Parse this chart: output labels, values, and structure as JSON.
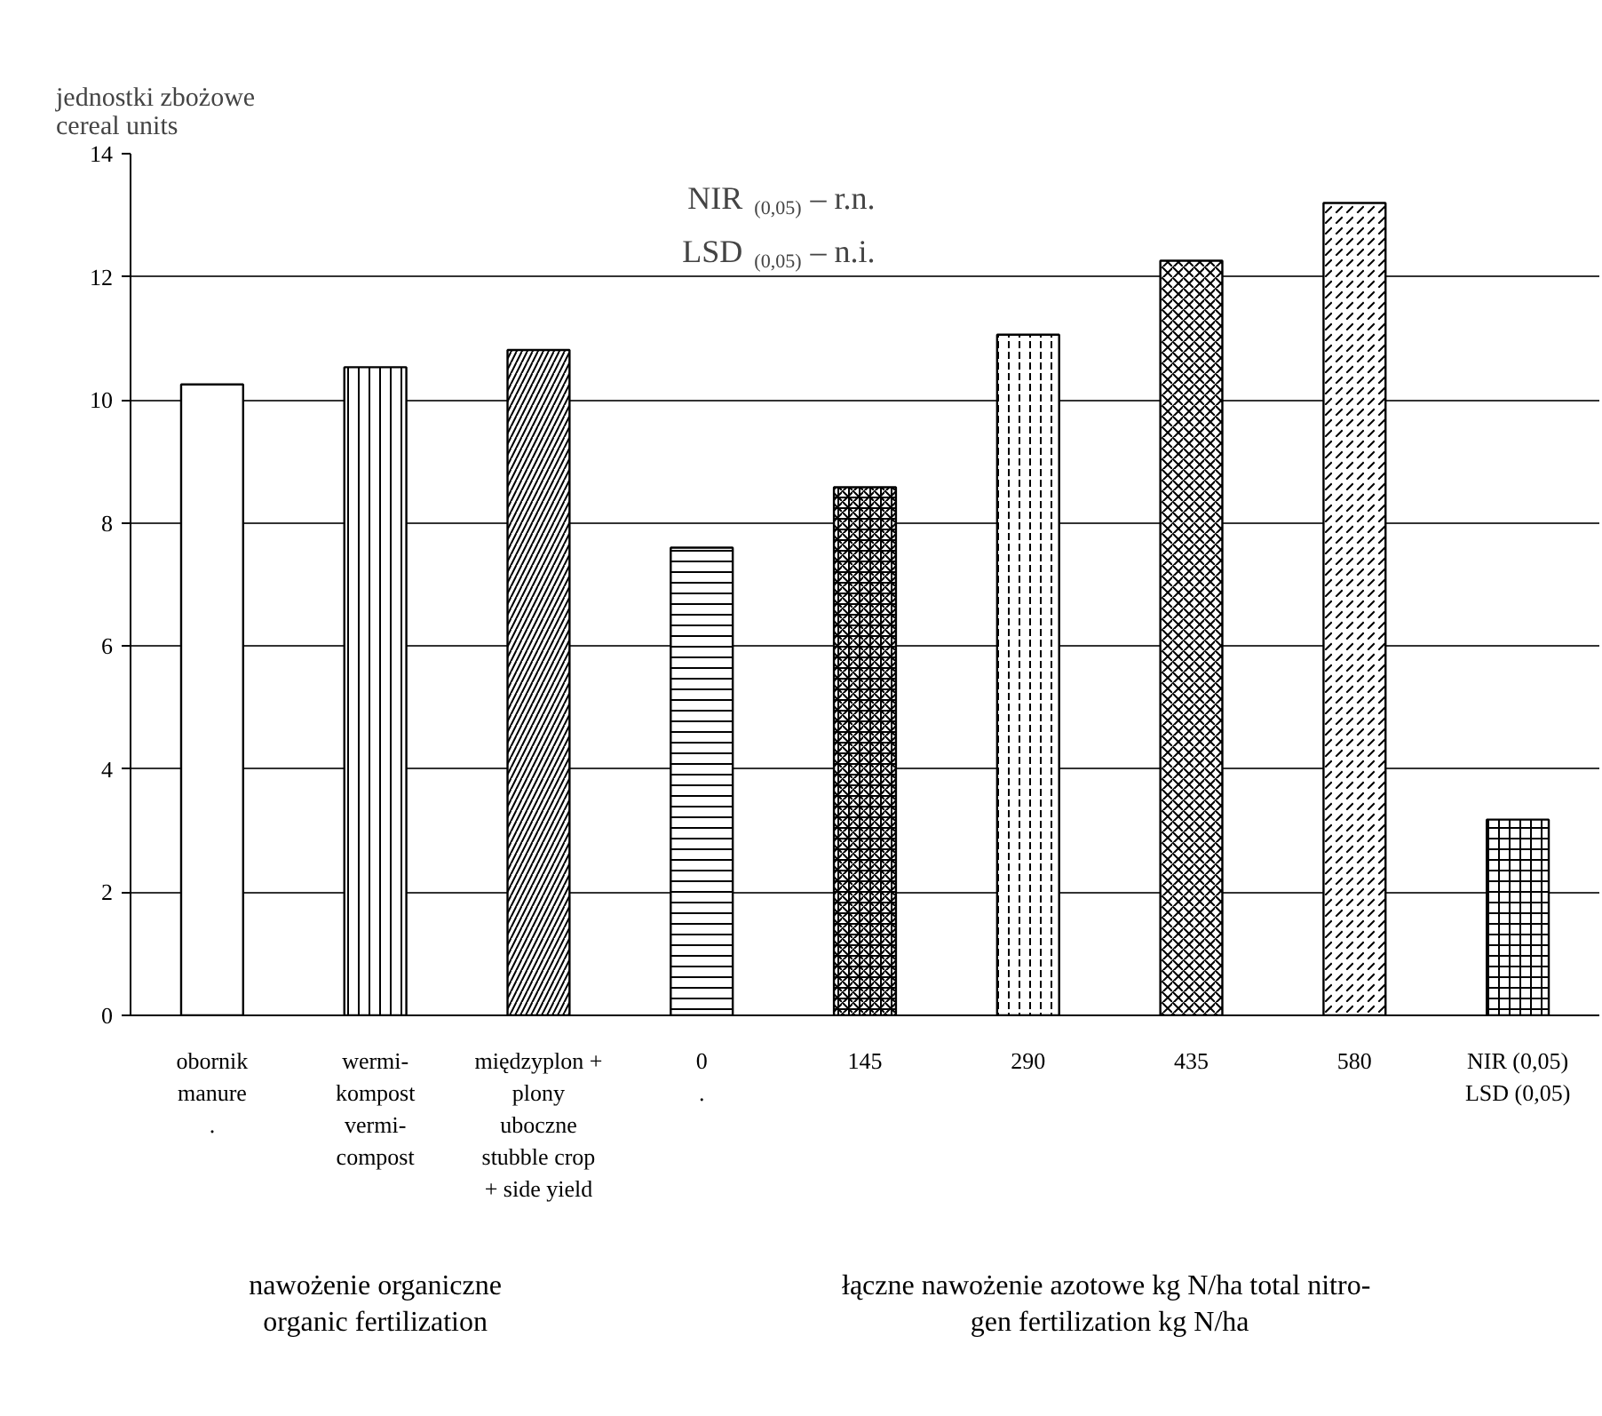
{
  "chart_data": {
    "type": "bar",
    "ylabel": "jednostki zbożowe\ncereal units",
    "categories": [
      "obornik\nmanure\n.",
      "wermi-\nkompost\nvermi-\ncompost",
      "międzyplon +\nplony\nuboczne\nstubble crop\n+ side yield",
      "0\n.",
      "145",
      "290",
      "435",
      "580",
      "NIR (0,05)\nLSD (0,05)"
    ],
    "values": [
      10.25,
      10.53,
      10.81,
      7.6,
      8.58,
      11.06,
      12.26,
      13.2,
      3.18
    ],
    "color": "#ffffff",
    "ylim": [
      0,
      14
    ],
    "yticks": [
      0,
      2,
      4,
      6,
      8,
      10,
      12,
      14
    ],
    "grid": "y",
    "annotations": [
      "NIR $_{(0,05)}$ –  r.n.",
      "LSD $_{(0,05)}$ – n.i.",
      "nawożenie organiczne\norganic fertilization",
      "łączne nawożenie azotowe kg N/ha  total nitro-\ngen fertilization kg N/ha"
    ]
  }
}
